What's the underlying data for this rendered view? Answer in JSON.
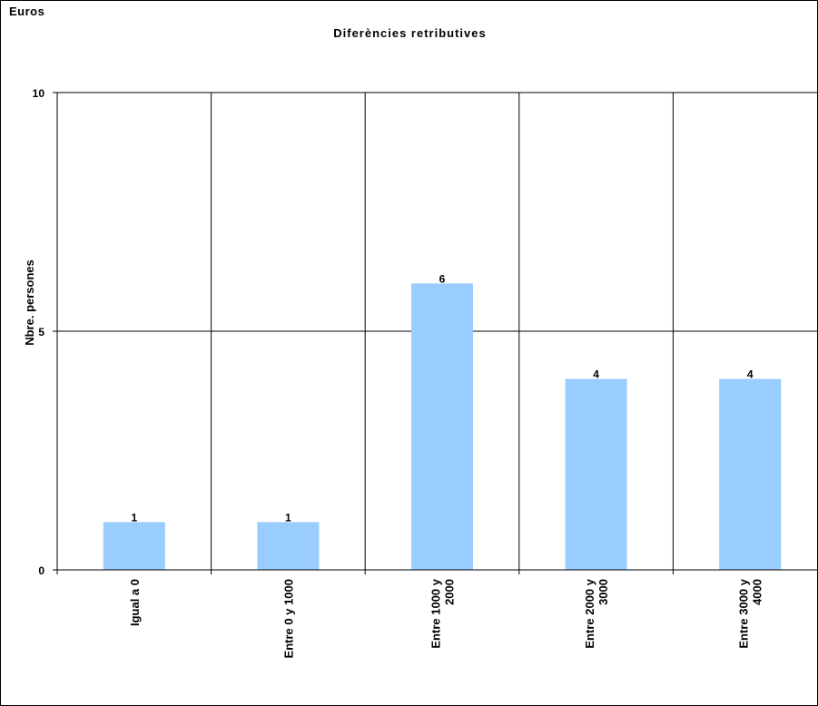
{
  "corner_label": "Euros",
  "chart_data": {
    "type": "bar",
    "title": "Diferències retributives",
    "xlabel": "",
    "ylabel": "Nbre. persones",
    "categories": [
      "Igual a 0",
      "Entre 0 y 1000",
      "Entre 1000 y 2000",
      "Entre 2000 y 3000",
      "Entre 3000 y 4000"
    ],
    "category_lines": [
      [
        "Igual a 0"
      ],
      [
        "Entre 0 y 1000"
      ],
      [
        "Entre 1000 y",
        "2000"
      ],
      [
        "Entre 2000 y",
        "3000"
      ],
      [
        "Entre 3000 y",
        "4000"
      ]
    ],
    "values": [
      1,
      1,
      6,
      4,
      4
    ],
    "data_labels": [
      "1",
      "1",
      "6",
      "4",
      "4"
    ],
    "ylim": [
      0,
      10
    ],
    "yticks": [
      0,
      5,
      10
    ],
    "ytick_labels": [
      "0",
      "5",
      "10"
    ],
    "grid": true,
    "legend": "none",
    "bar_color": "#99CCFF"
  }
}
